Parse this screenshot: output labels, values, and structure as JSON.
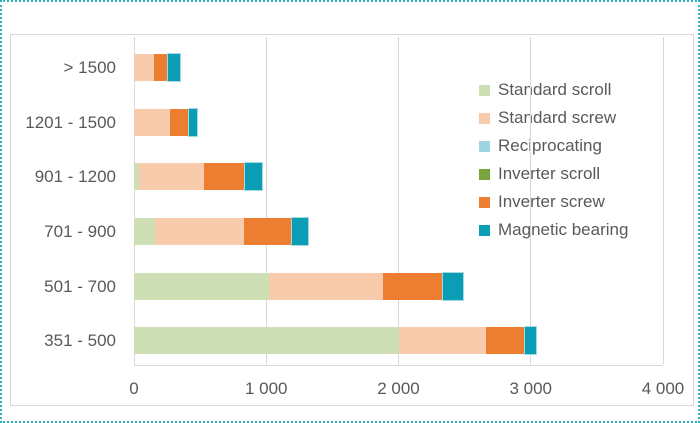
{
  "styles": {
    "outer_border_color": "#2bb2bd",
    "chart_border_color": "#d9d9d9",
    "gridline_color": "#d9d9d9",
    "text_color": "#595959",
    "background": "#ffffff"
  },
  "chart_data": {
    "type": "bar",
    "orientation": "horizontal",
    "stacked": true,
    "title": "",
    "xlabel": "",
    "ylabel": "",
    "grid": true,
    "legend_position": "right",
    "categories": [
      "> 1500",
      "1201 - 1500",
      "901 - 1200",
      "701 - 900",
      "501 - 700",
      "351 - 500"
    ],
    "series": [
      {
        "name": "Standard scroll",
        "color": "#cedfb5",
        "values": [
          0,
          0,
          35,
          160,
          1020,
          2000
        ]
      },
      {
        "name": "Standard screw",
        "color": "#f8cbad",
        "values": [
          150,
          270,
          495,
          670,
          860,
          660
        ]
      },
      {
        "name": "Reciprocating",
        "color": "#9fd4e2",
        "values": [
          0,
          0,
          0,
          0,
          0,
          0
        ]
      },
      {
        "name": "Inverter scroll",
        "color": "#77a53c",
        "values": [
          0,
          0,
          0,
          0,
          0,
          0
        ]
      },
      {
        "name": "Inverter screw",
        "color": "#ed7d31",
        "values": [
          100,
          140,
          300,
          355,
          450,
          290
        ]
      },
      {
        "name": "Magnetic bearing",
        "color": "#0a9db5",
        "highlight_border": "#a3dae4",
        "values": [
          95,
          65,
          135,
          130,
          160,
          90
        ]
      }
    ],
    "x_axis": {
      "min": 0,
      "max": 4000,
      "values": [
        0,
        1000,
        2000,
        3000,
        4000
      ],
      "ticks": [
        "0",
        "1 000",
        "2 000",
        "3 000",
        "4 000"
      ]
    }
  }
}
